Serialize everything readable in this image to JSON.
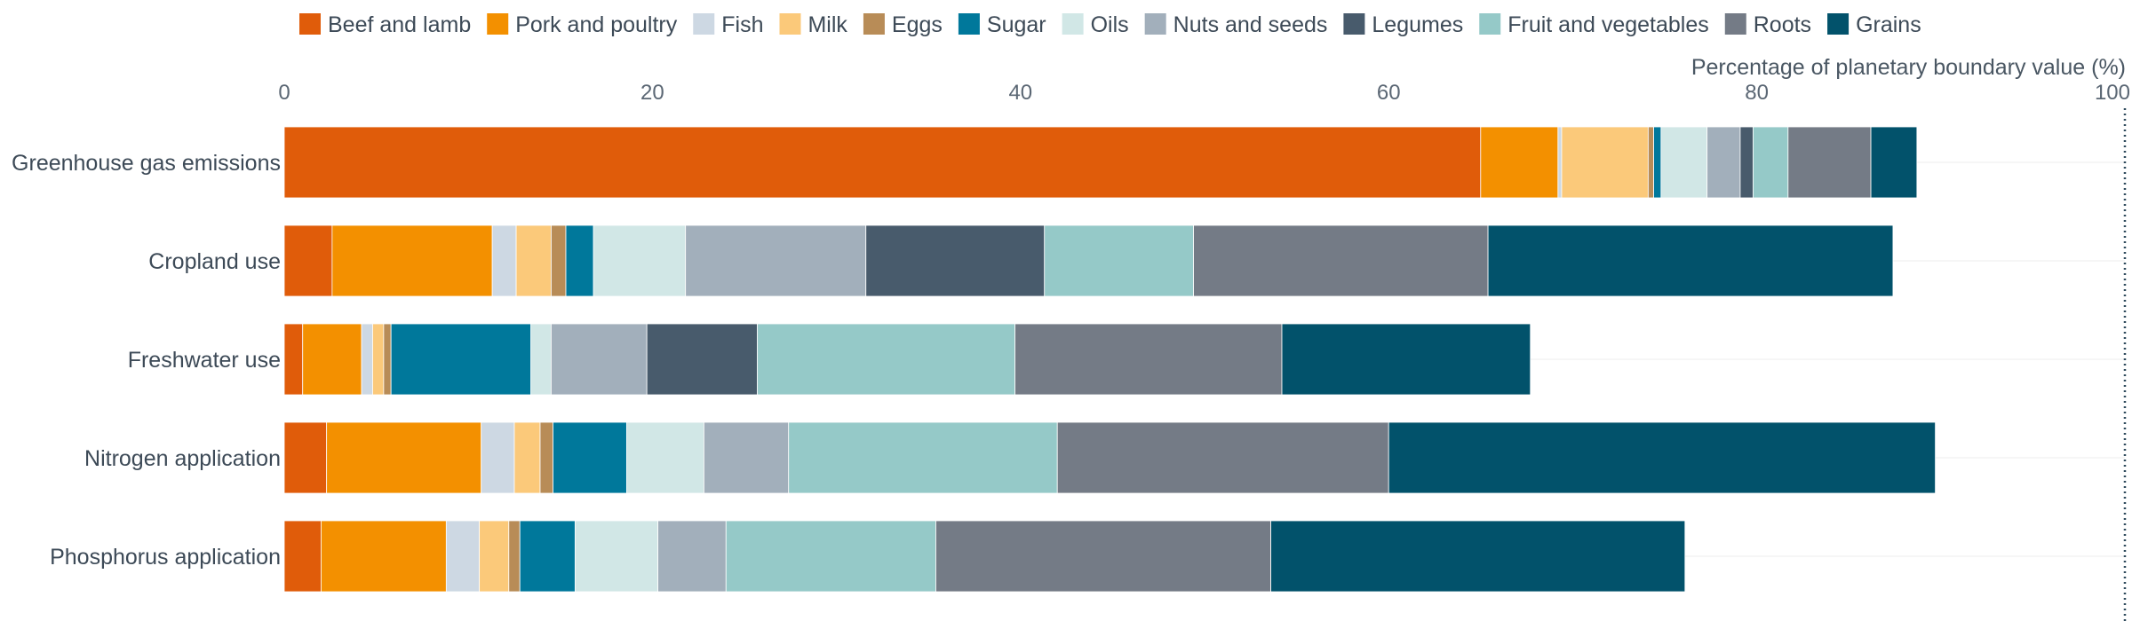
{
  "chart_data": {
    "type": "bar",
    "orientation": "horizontal",
    "stacked": true,
    "xlabel": "Percentage of planetary boundary value (%)",
    "xlim": [
      0,
      100
    ],
    "xticks": [
      "0",
      "20",
      "40",
      "60",
      "80",
      "100"
    ],
    "reference_line": {
      "x": 100,
      "style": "dotted"
    },
    "grid": "horizontal",
    "legend_position": "top",
    "categories": [
      "Greenhouse gas emissions",
      "Cropland use",
      "Freshwater use",
      "Nitrogen application",
      "Phosphorus application"
    ],
    "series": [
      {
        "name": "Beef and lamb",
        "color": "#e05c0a",
        "values": [
          65.0,
          2.6,
          1.0,
          2.3,
          2.0
        ]
      },
      {
        "name": "Pork and poultry",
        "color": "#f39000",
        "values": [
          4.2,
          8.7,
          3.2,
          8.4,
          6.8
        ]
      },
      {
        "name": "Fish",
        "color": "#cdd8e3",
        "values": [
          0.2,
          1.3,
          0.6,
          1.8,
          1.8
        ]
      },
      {
        "name": "Milk",
        "color": "#fbc97a",
        "values": [
          4.7,
          1.9,
          0.6,
          1.4,
          1.6
        ]
      },
      {
        "name": "Eggs",
        "color": "#b88c57",
        "values": [
          0.3,
          0.8,
          0.4,
          0.7,
          0.6
        ]
      },
      {
        "name": "Sugar",
        "color": "#00789b",
        "values": [
          0.4,
          1.5,
          7.6,
          4.0,
          3.0
        ]
      },
      {
        "name": "Oils",
        "color": "#d1e7e6",
        "values": [
          2.5,
          5.0,
          1.1,
          4.2,
          4.5
        ]
      },
      {
        "name": "Nuts and seeds",
        "color": "#a2afbb",
        "values": [
          1.8,
          9.8,
          5.2,
          4.6,
          3.7
        ]
      },
      {
        "name": "Legumes",
        "color": "#485b6c",
        "values": [
          0.7,
          9.7,
          6.0,
          0.0,
          0.0
        ]
      },
      {
        "name": "Fruit and vegetables",
        "color": "#95c9c8",
        "values": [
          1.9,
          8.1,
          14.0,
          14.6,
          11.4
        ]
      },
      {
        "name": "Roots",
        "color": "#747b86",
        "values": [
          4.5,
          16.0,
          14.5,
          18.0,
          18.2
        ]
      },
      {
        "name": "Grains",
        "color": "#02526b",
        "values": [
          2.5,
          22.0,
          13.5,
          29.7,
          22.5
        ]
      }
    ]
  }
}
